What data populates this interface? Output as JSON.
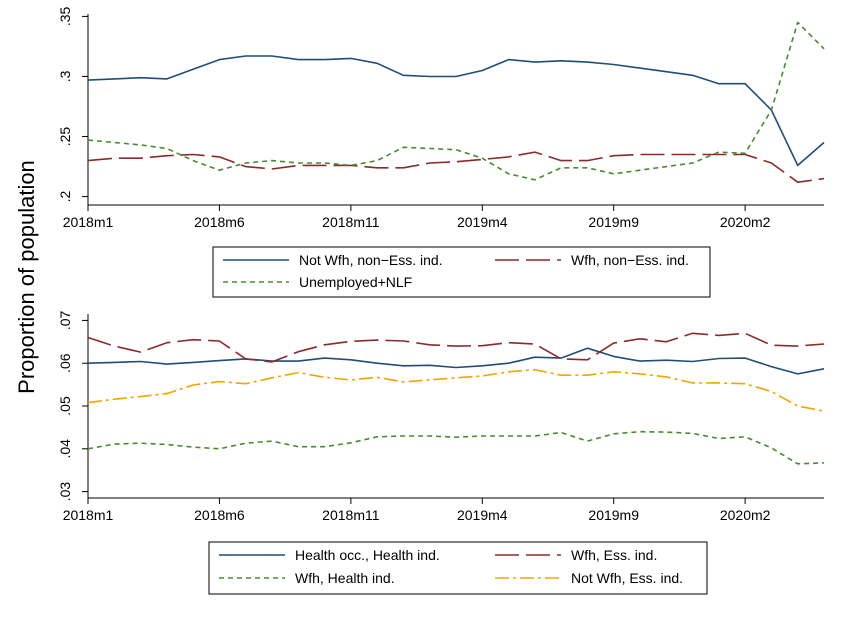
{
  "figure": {
    "ylabel": "Proportion of population"
  },
  "chart_data": [
    {
      "type": "line",
      "x": [
        "2018m1",
        "2018m2",
        "2018m3",
        "2018m4",
        "2018m5",
        "2018m6",
        "2018m7",
        "2018m8",
        "2018m9",
        "2018m10",
        "2018m11",
        "2018m12",
        "2019m1",
        "2019m2",
        "2019m3",
        "2019m4",
        "2019m5",
        "2019m6",
        "2019m7",
        "2019m8",
        "2019m9",
        "2019m10",
        "2019m11",
        "2019m12",
        "2020m1",
        "2020m2",
        "2020m3",
        "2020m4",
        "2020m5"
      ],
      "xticks": [
        "2018m1",
        "2018m6",
        "2018m11",
        "2019m4",
        "2019m9",
        "2020m2"
      ],
      "yticks": [
        ".2",
        ".25",
        ".3",
        ".35"
      ],
      "yticks_values": [
        0.2,
        0.25,
        0.3,
        0.35
      ],
      "ylim": [
        0.193,
        0.352
      ],
      "legend_position": "bottom",
      "series": [
        {
          "name": "Not Wfh, non−Ess. ind.",
          "color": "#1f4e79",
          "dash": "solid",
          "values": [
            0.297,
            0.298,
            0.299,
            0.298,
            0.306,
            0.314,
            0.317,
            0.317,
            0.314,
            0.314,
            0.315,
            0.311,
            0.301,
            0.3,
            0.3,
            0.305,
            0.314,
            0.312,
            0.313,
            0.312,
            0.31,
            0.307,
            0.304,
            0.301,
            0.294,
            0.294,
            0.272,
            0.226,
            0.245
          ]
        },
        {
          "name": "Wfh, non−Ess. ind.",
          "color": "#8b2a2a",
          "dash": "longdash",
          "values": [
            0.23,
            0.232,
            0.232,
            0.234,
            0.235,
            0.233,
            0.225,
            0.223,
            0.226,
            0.226,
            0.226,
            0.224,
            0.224,
            0.228,
            0.229,
            0.231,
            0.233,
            0.237,
            0.23,
            0.23,
            0.234,
            0.235,
            0.235,
            0.235,
            0.235,
            0.235,
            0.228,
            0.212,
            0.215
          ]
        },
        {
          "name": "Unemployed+NLF",
          "color": "#4a8a2e",
          "dash": "shortdash",
          "values": [
            0.247,
            0.245,
            0.243,
            0.24,
            0.23,
            0.222,
            0.228,
            0.23,
            0.228,
            0.228,
            0.226,
            0.23,
            0.241,
            0.24,
            0.239,
            0.232,
            0.219,
            0.214,
            0.224,
            0.224,
            0.219,
            0.222,
            0.225,
            0.228,
            0.237,
            0.236,
            0.272,
            0.345,
            0.323
          ]
        }
      ]
    },
    {
      "type": "line",
      "x": [
        "2018m1",
        "2018m2",
        "2018m3",
        "2018m4",
        "2018m5",
        "2018m6",
        "2018m7",
        "2018m8",
        "2018m9",
        "2018m10",
        "2018m11",
        "2018m12",
        "2019m1",
        "2019m2",
        "2019m3",
        "2019m4",
        "2019m5",
        "2019m6",
        "2019m7",
        "2019m8",
        "2019m9",
        "2019m10",
        "2019m11",
        "2019m12",
        "2020m1",
        "2020m2",
        "2020m3",
        "2020m4",
        "2020m5"
      ],
      "xticks": [
        "2018m1",
        "2018m6",
        "2018m11",
        "2019m4",
        "2019m9",
        "2020m2"
      ],
      "yticks": [
        ".03",
        ".04",
        ".05",
        ".06",
        ".07"
      ],
      "yticks_values": [
        0.03,
        0.04,
        0.05,
        0.06,
        0.07
      ],
      "ylim": [
        0.0285,
        0.0715
      ],
      "legend_position": "bottom",
      "series": [
        {
          "name": "Health occ., Health ind.",
          "color": "#1f4e79",
          "dash": "solid",
          "values": [
            0.06,
            0.0602,
            0.0604,
            0.0598,
            0.0602,
            0.0606,
            0.061,
            0.0605,
            0.0605,
            0.0612,
            0.0608,
            0.06,
            0.0594,
            0.0595,
            0.059,
            0.0594,
            0.06,
            0.0614,
            0.0612,
            0.0635,
            0.0616,
            0.0605,
            0.0607,
            0.0604,
            0.0611,
            0.0612,
            0.0592,
            0.0575,
            0.0587
          ]
        },
        {
          "name": "Wfh, Ess. ind.",
          "color": "#8b2a2a",
          "dash": "longdash",
          "values": [
            0.066,
            0.064,
            0.0626,
            0.0648,
            0.0655,
            0.0652,
            0.061,
            0.0603,
            0.0627,
            0.0643,
            0.0651,
            0.0654,
            0.0652,
            0.0643,
            0.064,
            0.0641,
            0.0648,
            0.0645,
            0.061,
            0.0608,
            0.0647,
            0.0657,
            0.065,
            0.067,
            0.0665,
            0.067,
            0.0642,
            0.064,
            0.0645
          ]
        },
        {
          "name": "Wfh, Health ind.",
          "color": "#4a8a2e",
          "dash": "shortdash",
          "values": [
            0.04,
            0.0411,
            0.0413,
            0.041,
            0.0404,
            0.04,
            0.0413,
            0.0418,
            0.0405,
            0.0405,
            0.0414,
            0.0428,
            0.043,
            0.043,
            0.0427,
            0.043,
            0.043,
            0.043,
            0.0438,
            0.0418,
            0.0435,
            0.044,
            0.0439,
            0.0436,
            0.0424,
            0.0428,
            0.0402,
            0.0365,
            0.0367
          ]
        },
        {
          "name": "Not Wfh, Ess. ind.",
          "color": "#f0a500",
          "dash": "dashdot",
          "values": [
            0.0508,
            0.0516,
            0.0522,
            0.0529,
            0.0549,
            0.0557,
            0.0552,
            0.0566,
            0.0578,
            0.0567,
            0.0561,
            0.0567,
            0.0556,
            0.0561,
            0.0566,
            0.057,
            0.058,
            0.0585,
            0.0572,
            0.0572,
            0.058,
            0.0575,
            0.0568,
            0.0554,
            0.0554,
            0.0552,
            0.0534,
            0.05,
            0.0488
          ]
        }
      ]
    }
  ]
}
